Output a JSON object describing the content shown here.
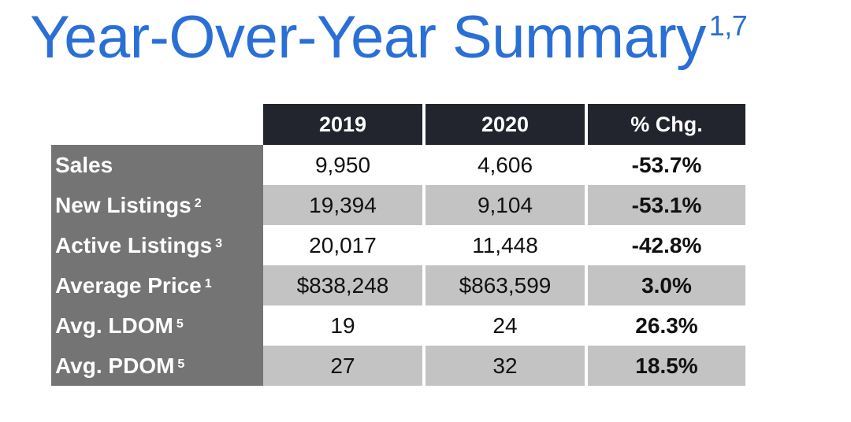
{
  "title": {
    "text": "Year-Over-Year Summary",
    "superscript": "1,7"
  },
  "table": {
    "columns": [
      "2019",
      "2020",
      "% Chg."
    ],
    "rows": [
      {
        "label": "Sales",
        "sup": "",
        "y2019": "9,950",
        "y2020": "4,606",
        "chg": "-53.7%"
      },
      {
        "label": "New Listings",
        "sup": "2",
        "y2019": "19,394",
        "y2020": "9,104",
        "chg": "-53.1%"
      },
      {
        "label": "Active Listings",
        "sup": "3",
        "y2019": "20,017",
        "y2020": "11,448",
        "chg": "-42.8%"
      },
      {
        "label": "Average Price",
        "sup": "1",
        "y2019": "$838,248",
        "y2020": "$863,599",
        "chg": "3.0%"
      },
      {
        "label": "Avg. LDOM",
        "sup": "5",
        "y2019": "19",
        "y2020": "24",
        "chg": "26.3%"
      },
      {
        "label": "Avg. PDOM",
        "sup": "5",
        "y2019": "27",
        "y2020": "32",
        "chg": "18.5%"
      }
    ]
  },
  "colors": {
    "title": "#2a6fd6",
    "header_bg": "#22252e",
    "label_bg": "#747474",
    "stripe_bg": "#c3c3c3"
  }
}
